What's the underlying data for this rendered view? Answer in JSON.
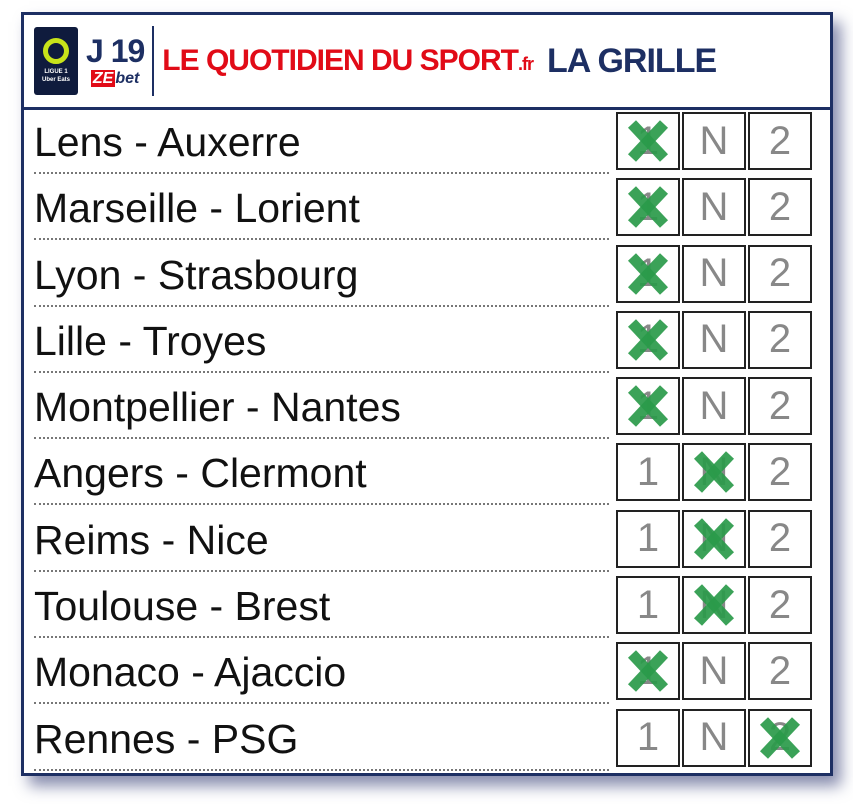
{
  "header": {
    "league": "LIGUE 1",
    "sponsor": "Uber Eats",
    "round": "J 19",
    "bookmaker_ze": "ZE",
    "bookmaker_bet": "bet",
    "brand": "LE QUOTIDIEN DU SPORT",
    "brand_tld": ".fr",
    "title": "LA GRILLE"
  },
  "options": [
    "1",
    "N",
    "2"
  ],
  "mark": "X",
  "mark_color": "#2a9a4a",
  "matches": [
    {
      "label": "Lens - Auxerre",
      "pick": "1"
    },
    {
      "label": "Marseille - Lorient",
      "pick": "1"
    },
    {
      "label": "Lyon - Strasbourg",
      "pick": "1"
    },
    {
      "label": "Lille - Troyes",
      "pick": "1"
    },
    {
      "label": "Montpellier - Nantes",
      "pick": "1"
    },
    {
      "label": "Angers - Clermont",
      "pick": "N"
    },
    {
      "label": "Reims - Nice",
      "pick": "N"
    },
    {
      "label": "Toulouse - Brest",
      "pick": "N"
    },
    {
      "label": "Monaco - Ajaccio",
      "pick": "1"
    },
    {
      "label": "Rennes - PSG",
      "pick": "2"
    }
  ]
}
